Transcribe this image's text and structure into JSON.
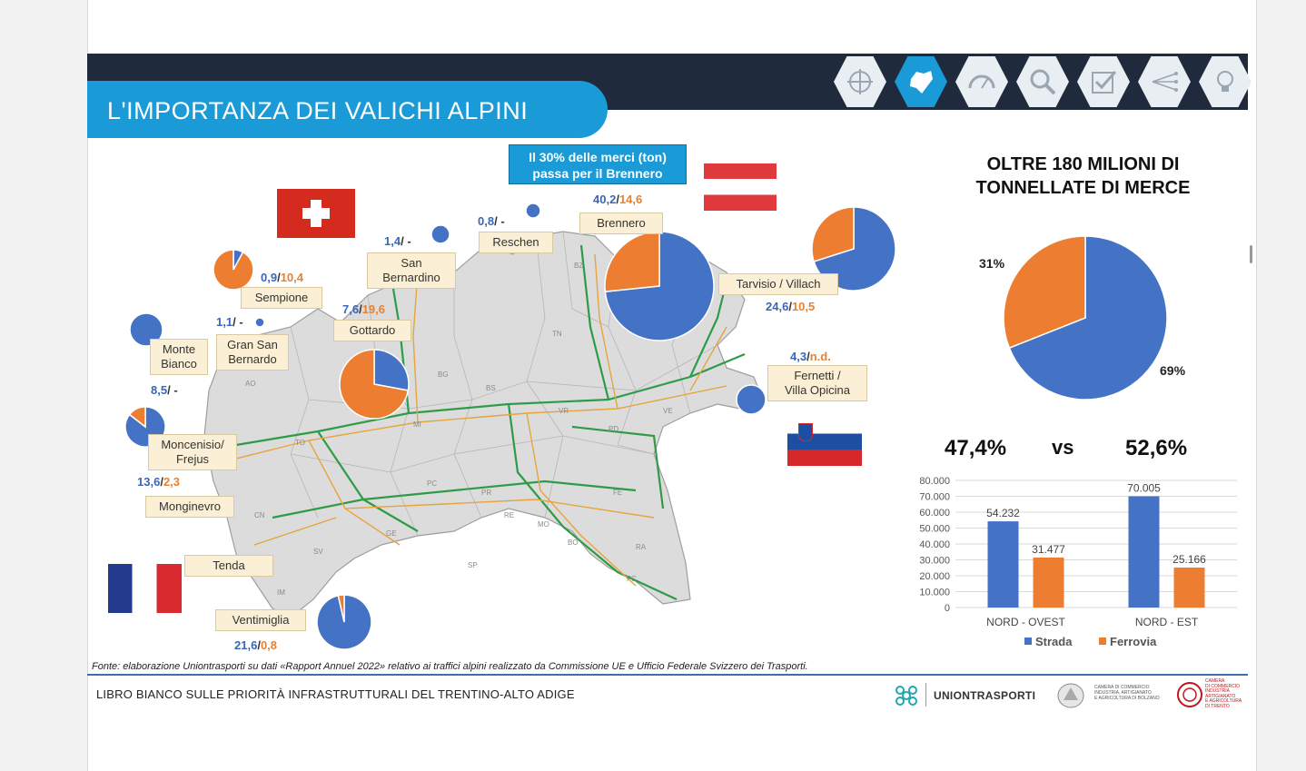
{
  "header": {
    "title": "L'IMPORTANZA DEI VALICHI ALPINI",
    "nav_icons": [
      "target-icon",
      "region-map-icon",
      "gauge-icon",
      "magnifier-icon",
      "checklist-icon",
      "network-icon",
      "lightbulb-icon"
    ],
    "active_icon": "region-map-icon"
  },
  "colors": {
    "strada": "#4472c4",
    "ferrovia": "#ed7d31",
    "accent": "#1a9ad6",
    "dark": "#1f2b3d"
  },
  "callout": {
    "line1": "Il 30% delle merci (ton)",
    "line2": "passa per il Brennero"
  },
  "passes": [
    {
      "name": "Brennero",
      "strada": "40,2",
      "ferrovia": "14,6"
    },
    {
      "name": "Reschen",
      "strada": "0,8",
      "ferrovia": "-"
    },
    {
      "name": "San Bernardino",
      "strada": "1,4",
      "ferrovia": "-"
    },
    {
      "name": "Sempione",
      "strada": "0,9",
      "ferrovia": "10,4"
    },
    {
      "name": "Gotthardo",
      "strada": "7,6",
      "ferrovia": "19,6"
    },
    {
      "name": "Gran San Bernardo",
      "strada": "1,1",
      "ferrovia": "-"
    },
    {
      "name": "Monte Bianco",
      "strada": "8,5",
      "ferrovia": "-"
    },
    {
      "name": "Moncenisio/ Frejus",
      "strada": "13,6",
      "ferrovia": "2,3"
    },
    {
      "name": "Monginevro",
      "strada": "",
      "ferrovia": ""
    },
    {
      "name": "Tenda",
      "strada": "",
      "ferrovia": ""
    },
    {
      "name": "Ventimiglia",
      "strada": "21,6",
      "ferrovia": "0,8"
    },
    {
      "name": "Tarvisio / Villach",
      "strada": "24,6",
      "ferrovia": "10,5"
    },
    {
      "name": "Fernetti / Villa Opicina",
      "strada": "4,3",
      "ferrovia": "n.d."
    }
  ],
  "labels": {
    "brennero": "Brennero",
    "reschen": "Reschen",
    "san_bernardino_1": "San",
    "san_bernardino_2": "Bernardino",
    "sempione": "Sempione",
    "gottardo": "Gottardo",
    "gsb_1": "Gran San",
    "gsb_2": "Bernardo",
    "mb_1": "Monte",
    "mb_2": "Bianco",
    "mf_1": "Moncenisio/",
    "mf_2": "Frejus",
    "monginevro": "Monginevro",
    "tenda": "Tenda",
    "ventimiglia": "Ventimiglia",
    "tarvisio": "Tarvisio / Villach",
    "fern_1": "Fernetti /",
    "fern_2": "Villa Opicina"
  },
  "values": {
    "brennero": {
      "a": "40,2",
      "b": "14,6"
    },
    "reschen": {
      "a": "0,8",
      "s": "-"
    },
    "san_bernardino": {
      "a": "1,4",
      "s": "-"
    },
    "sempione": {
      "a": "0,9",
      "b": "10,4"
    },
    "gottardo": {
      "a": "7,6",
      "b": "19,6"
    },
    "gsb": {
      "a": "1,1",
      "s": "-"
    },
    "mb": {
      "a": "8,5",
      "s": "-"
    },
    "mf": {
      "a": "13,6",
      "b": "2,3"
    },
    "ventimiglia": {
      "a": "21,6",
      "b": "0,8"
    },
    "tarvisio": {
      "a": "24,6",
      "b": "10,5"
    },
    "fernetti": {
      "a": "4,3",
      "b": "n.d."
    }
  },
  "map_codes": [
    "BZ",
    "TN",
    "BG",
    "BS",
    "VR",
    "VE",
    "PD",
    "MI",
    "TO",
    "AO",
    "PC",
    "PR",
    "RE",
    "MO",
    "FE",
    "BO",
    "RA",
    "FC",
    "GE",
    "SV",
    "IM",
    "SP",
    "CN"
  ],
  "summary": {
    "title_line1": "OLTRE 180 MILIONI DI",
    "title_line2": "TONNELLATE DI MERCE",
    "pct_ferrovia": "31%",
    "pct_strada": "69%",
    "left_pct": "47,4%",
    "vs": "vs",
    "right_pct": "52,6%"
  },
  "chart_data": [
    {
      "type": "pie",
      "labels": [
        "Strada",
        "Ferrovia"
      ],
      "values": [
        69,
        31
      ]
    },
    {
      "type": "bar",
      "categories": [
        "NORD - OVEST",
        "NORD - EST"
      ],
      "series": [
        {
          "name": "Strada",
          "values": [
            54232,
            70005
          ]
        },
        {
          "name": "Ferrovia",
          "values": [
            31477,
            25166
          ]
        }
      ],
      "data_labels": [
        [
          "54.232",
          "70.005"
        ],
        [
          "31.477",
          "25.166"
        ]
      ],
      "yticks": [
        "0",
        "10.000",
        "20.000",
        "30.000",
        "40.000",
        "50.000",
        "60.000",
        "70.000",
        "80.000"
      ],
      "ylim": [
        0,
        80000
      ],
      "grid": true,
      "legend": "bottom"
    },
    {
      "type": "pie",
      "note": "map pies per pass, strada vs ferrovia",
      "series": [
        {
          "name": "Brennero",
          "values": [
            40.2,
            14.6
          ]
        },
        {
          "name": "Reschen",
          "values": [
            0.8,
            0
          ]
        },
        {
          "name": "San Bernardino",
          "values": [
            1.4,
            0
          ]
        },
        {
          "name": "Sempione",
          "values": [
            0.9,
            10.4
          ]
        },
        {
          "name": "Gottardo",
          "values": [
            7.6,
            19.6
          ]
        },
        {
          "name": "Gran San Bernardo",
          "values": [
            1.1,
            0
          ]
        },
        {
          "name": "Monte Bianco",
          "values": [
            8.5,
            0
          ]
        },
        {
          "name": "Moncenisio/ Frejus",
          "values": [
            13.6,
            2.3
          ]
        },
        {
          "name": "Ventimiglia",
          "values": [
            21.6,
            0.8
          ]
        },
        {
          "name": "Tarvisio / Villach",
          "values": [
            24.6,
            10.5
          ]
        },
        {
          "name": "Fernetti / Villa Opicina",
          "values": [
            4.3,
            0
          ]
        }
      ]
    }
  ],
  "source": "Fonte: elaborazione Uniontrasporti su dati «Rapport Annuel 2022» relativo ai traffici alpini realizzato da Commissione UE e Ufficio Federale Svizzero dei Trasporti.",
  "footer": {
    "title": "LIBRO BIANCO SULLE PRIORITÀ INFRASTRUTTURALI DEL TRENTINO-ALTO ADIGE",
    "brand": "UNIONTRASPORTI",
    "chamber1": [
      "CAMERA DI COMMERCIO",
      "INDUSTRIA, ARTIGIANATO",
      "E AGRICOLTURA DI BOLZANO"
    ],
    "chamber2": [
      "CAMERA",
      "DI COMMERCIO",
      "INDUSTRIA",
      "ARTIGIANATO",
      "E AGRICOLTURA",
      "DI TRENTO"
    ]
  }
}
